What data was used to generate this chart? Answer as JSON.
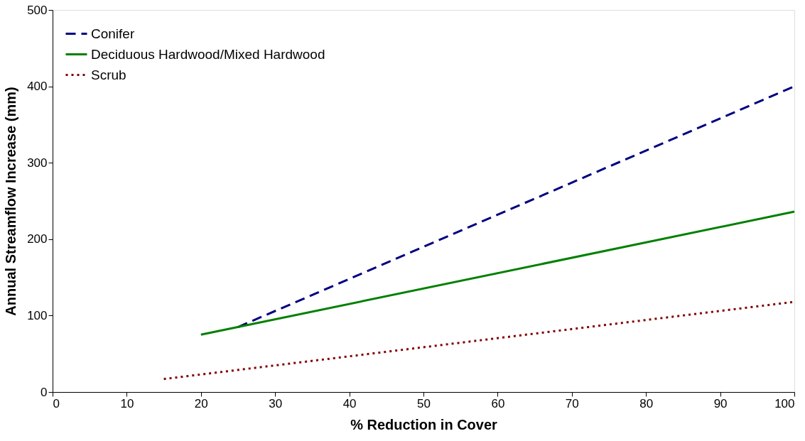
{
  "chart_data": {
    "type": "line",
    "xlabel": "% Reduction in Cover",
    "ylabel": "Annual Streamflow Increase (mm)",
    "xlim": [
      0,
      100
    ],
    "xticks": [
      0,
      10,
      20,
      30,
      40,
      50,
      60,
      70,
      80,
      90,
      100
    ],
    "ylim": [
      0,
      500
    ],
    "yticks": [
      0,
      100,
      200,
      300,
      400,
      500
    ],
    "grid": false,
    "legend": "top left",
    "marker": "none",
    "series": [
      {
        "name": "Conifer",
        "color": "#000080",
        "line_style": "dashed",
        "x": [
          25,
          100
        ],
        "values": [
          85,
          400
        ]
      },
      {
        "name": "Deciduous Hardwood/Mixed Hardwood",
        "color": "#008000",
        "line_style": "solid",
        "x": [
          20,
          100
        ],
        "values": [
          75,
          236
        ]
      },
      {
        "name": "Scrub",
        "color": "#800000",
        "line_style": "dotted",
        "x": [
          15,
          100
        ],
        "values": [
          17,
          118
        ]
      }
    ]
  }
}
